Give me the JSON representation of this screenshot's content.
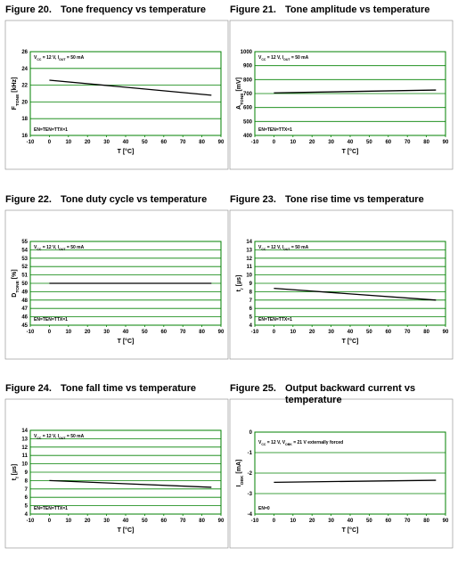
{
  "chart_data": [
    {
      "type": "line",
      "figure": "Figure 20.",
      "title": "Tone frequency vs temperature",
      "xlabel": "T [°C]",
      "ylabel": [
        "F",
        "TONE",
        " [kHz]"
      ],
      "annotations": [
        [
          "V",
          "CC",
          " = 12 V, I",
          "OUT",
          " = 50 mA"
        ],
        [
          "EN=TEN=TTX=1"
        ]
      ],
      "x": [
        0,
        85
      ],
      "values": [
        22.6,
        20.8
      ],
      "color": "#000000",
      "xlim": [
        -10,
        90
      ],
      "xticks": [
        -10,
        0,
        10,
        20,
        30,
        40,
        50,
        60,
        70,
        80,
        90
      ],
      "ylim": [
        16,
        26
      ],
      "yticks": [
        16,
        18,
        20,
        22,
        24,
        26
      ],
      "grid": true,
      "grid_color": "#008000"
    },
    {
      "type": "line",
      "figure": "Figure 21.",
      "title": "Tone amplitude vs temperature",
      "xlabel": "T [°C]",
      "ylabel": [
        "A",
        "TONE",
        " [mV]"
      ],
      "annotations": [
        [
          "V",
          "CC",
          " = 12 V, I",
          "OUT",
          " = 50 mA"
        ],
        [
          "EN=TEN=TTX=1"
        ]
      ],
      "x": [
        0,
        85
      ],
      "values": [
        705,
        725
      ],
      "color": "#000000",
      "xlim": [
        -10,
        90
      ],
      "xticks": [
        -10,
        0,
        10,
        20,
        30,
        40,
        50,
        60,
        70,
        80,
        90
      ],
      "ylim": [
        400,
        1000
      ],
      "yticks": [
        400,
        500,
        600,
        700,
        800,
        900,
        1000
      ],
      "grid": true,
      "grid_color": "#008000"
    },
    {
      "type": "line",
      "figure": "Figure 22.",
      "title": "Tone duty cycle vs temperature",
      "xlabel": "T [°C]",
      "ylabel": [
        "D",
        "TONE",
        " [%]"
      ],
      "annotations": [
        [
          "V",
          "CC",
          " = 12 V, I",
          "OUT",
          " = 50 mA"
        ],
        [
          "EN=TEN=TTX=1"
        ]
      ],
      "x": [
        0,
        85
      ],
      "values": [
        50,
        50
      ],
      "color": "#000000",
      "xlim": [
        -10,
        90
      ],
      "xticks": [
        -10,
        0,
        10,
        20,
        30,
        40,
        50,
        60,
        70,
        80,
        90
      ],
      "ylim": [
        45,
        55
      ],
      "yticks": [
        45,
        46,
        47,
        48,
        49,
        50,
        51,
        52,
        53,
        54,
        55
      ],
      "grid": true,
      "grid_color": "#008000"
    },
    {
      "type": "line",
      "figure": "Figure 23.",
      "title": "Tone rise time vs temperature",
      "xlabel": "T [°C]",
      "ylabel": [
        "t",
        "r",
        " [µs]"
      ],
      "annotations": [
        [
          "V",
          "CC",
          " = 12 V, I",
          "OUT",
          " = 50 mA"
        ],
        [
          "EN=TEN=TTX=1"
        ]
      ],
      "x": [
        0,
        85
      ],
      "values": [
        8.4,
        7.0
      ],
      "color": "#000000",
      "xlim": [
        -10,
        90
      ],
      "xticks": [
        -10,
        0,
        10,
        20,
        30,
        40,
        50,
        60,
        70,
        80,
        90
      ],
      "ylim": [
        4,
        14
      ],
      "yticks": [
        4,
        5,
        6,
        7,
        8,
        9,
        10,
        11,
        12,
        13,
        14
      ],
      "grid": true,
      "grid_color": "#008000"
    },
    {
      "type": "line",
      "figure": "Figure 24.",
      "title": "Tone fall time vs temperature",
      "xlabel": "T [°C]",
      "ylabel": [
        "t",
        "f",
        " [µs]"
      ],
      "annotations": [
        [
          "V",
          "CC",
          " = 12 V, I",
          "OUT",
          " = 50 mA"
        ],
        [
          "EN=TEN=TTX=1"
        ]
      ],
      "x": [
        0,
        85
      ],
      "values": [
        8.0,
        7.2
      ],
      "color": "#000000",
      "xlim": [
        -10,
        90
      ],
      "xticks": [
        -10,
        0,
        10,
        20,
        30,
        40,
        50,
        60,
        70,
        80,
        90
      ],
      "ylim": [
        4,
        14
      ],
      "yticks": [
        4,
        5,
        6,
        7,
        8,
        9,
        10,
        11,
        12,
        13,
        14
      ],
      "grid": true,
      "grid_color": "#008000"
    },
    {
      "type": "line",
      "figure": "Figure 25.",
      "title": "Output backward current vs temperature",
      "xlabel": "T [°C]",
      "ylabel": [
        "I",
        "OBK",
        " [mA]"
      ],
      "annotations": [
        [
          "V",
          "CC",
          " = 12 V, V",
          "OBK",
          " = 21 V  externally forced"
        ],
        [
          "EN=0"
        ]
      ],
      "x": [
        0,
        85
      ],
      "values": [
        -2.45,
        -2.35
      ],
      "color": "#000000",
      "xlim": [
        -10,
        90
      ],
      "xticks": [
        -10,
        0,
        10,
        20,
        30,
        40,
        50,
        60,
        70,
        80,
        90
      ],
      "ylim": [
        -4,
        0
      ],
      "yticks": [
        -4,
        -3,
        -2,
        -1,
        0
      ],
      "grid": true,
      "grid_color": "#008000"
    }
  ]
}
